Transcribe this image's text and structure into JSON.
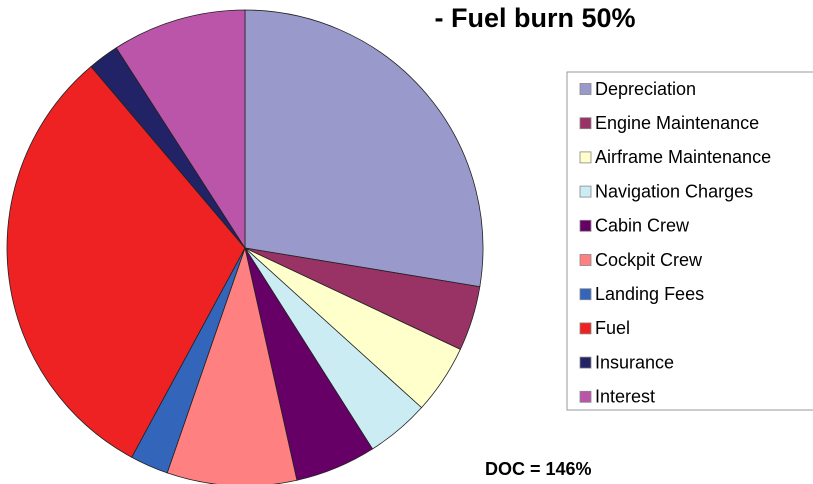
{
  "chart_data": {
    "type": "pie",
    "title": "- Fuel burn 50%",
    "categories": [
      "Depreciation",
      "Engine Maintenance",
      "Airframe Maintenance",
      "Navigation Charges",
      "Cabin Crew",
      "Cockpit Crew",
      "Landing Fees",
      "Fuel",
      "Insurance",
      "Interest"
    ],
    "values": [
      27.6,
      4.4,
      4.7,
      4.3,
      5.5,
      8.8,
      2.6,
      30.9,
      2.1,
      9.1
    ],
    "colors": [
      "#9999cc",
      "#993366",
      "#ffffcc",
      "#ccecf4",
      "#660066",
      "#ff8080",
      "#3366bb",
      "#ee2222",
      "#222266",
      "#bb55aa"
    ],
    "annotation": "DOC = 146%"
  }
}
